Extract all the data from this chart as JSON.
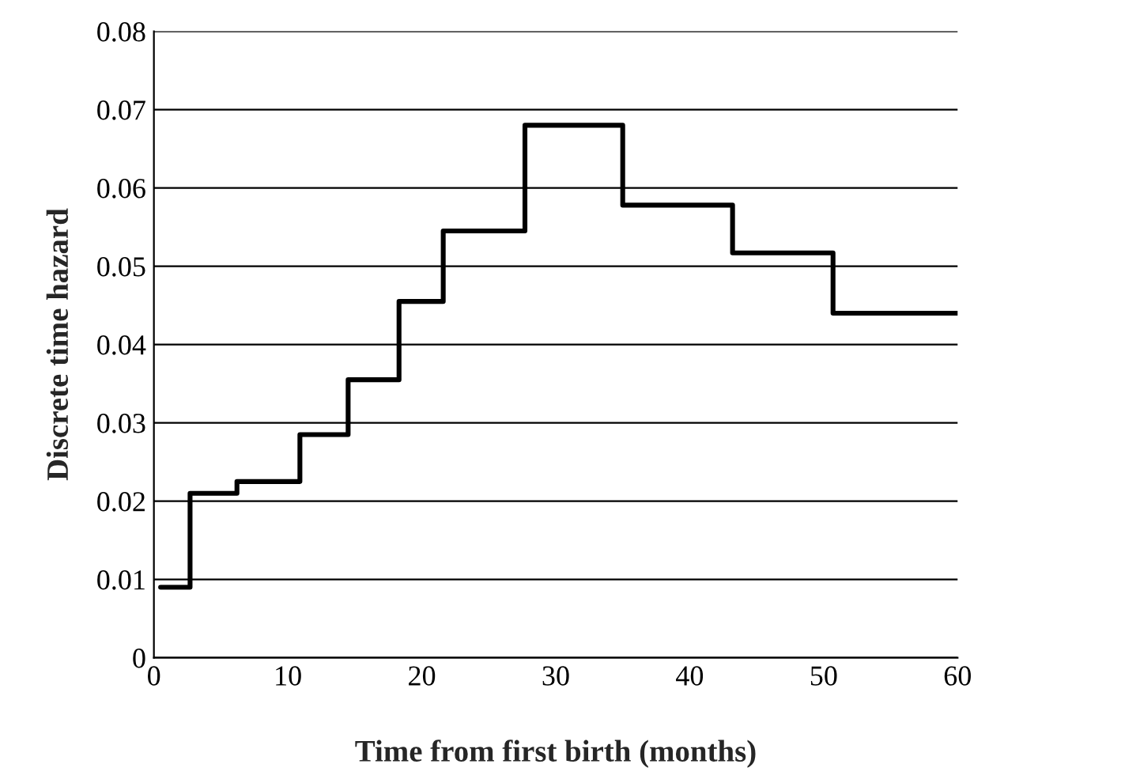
{
  "chart_data": {
    "type": "step",
    "xlabel": "Time from first birth (months)",
    "ylabel": "Discrete time hazard",
    "x": [
      0.5,
      2.7,
      6.2,
      10.9,
      14.5,
      18.3,
      21.6,
      27.7,
      35.0,
      43.2,
      50.7,
      60
    ],
    "series": [
      {
        "color": "#000000",
        "values": [
          0.009,
          0.021,
          0.0225,
          0.0285,
          0.0355,
          0.0455,
          0.0545,
          0.068,
          0.0578,
          0.0517,
          0.044,
          0.044
        ]
      }
    ],
    "xlim": [
      0,
      60
    ],
    "xticks": [
      0,
      10,
      20,
      30,
      40,
      50,
      60
    ],
    "ylim": [
      0,
      0.08
    ],
    "yticks": [
      {
        "value": 0,
        "label": "0"
      },
      {
        "value": 0.01,
        "label": "0.01"
      },
      {
        "value": 0.02,
        "label": "0.02"
      },
      {
        "value": 0.03,
        "label": "0.03"
      },
      {
        "value": 0.04,
        "label": "0.04"
      },
      {
        "value": 0.05,
        "label": "0.05"
      },
      {
        "value": 0.06,
        "label": "0.06"
      },
      {
        "value": 0.07,
        "label": "0.07"
      },
      {
        "value": 0.08,
        "label": "0.08"
      }
    ],
    "grid": "y",
    "legend": false
  }
}
